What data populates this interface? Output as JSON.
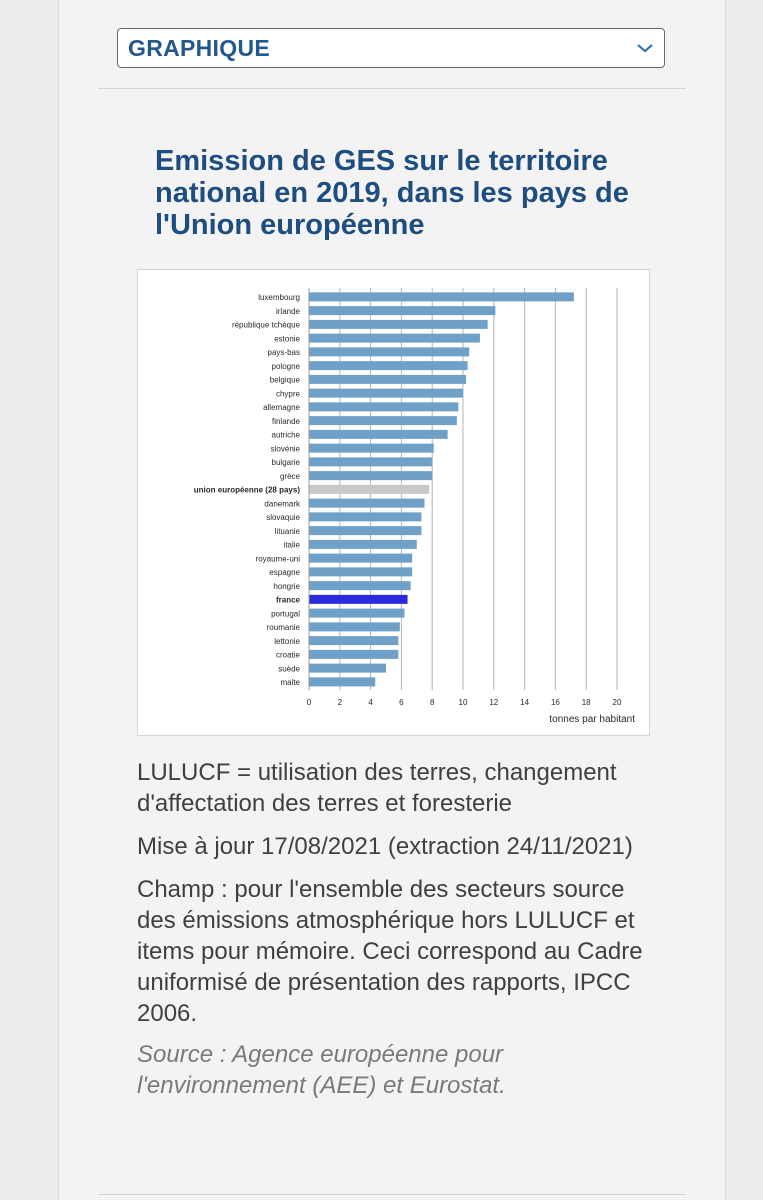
{
  "dropdown": {
    "label": "GRAPHIQUE",
    "icon": "chevron-down-icon"
  },
  "title": "Emission de GES sur le territoire national en 2019, dans les pays de l'Union européenne",
  "chart_data": {
    "type": "bar",
    "orientation": "horizontal",
    "categories": [
      "luxembourg",
      "irlande",
      "république tchèque",
      "estonie",
      "pays-bas",
      "pologne",
      "belgique",
      "chypre",
      "allemagne",
      "finlande",
      "autriche",
      "slovénie",
      "bulgarie",
      "grèce",
      "union européenne (28 pays)",
      "danemark",
      "slovaquie",
      "lituanie",
      "italie",
      "royaume-uni",
      "espagne",
      "hongrie",
      "france",
      "portugal",
      "roumanie",
      "lettonie",
      "croatie",
      "suède",
      "malte"
    ],
    "values": [
      17.2,
      12.1,
      11.6,
      11.1,
      10.4,
      10.3,
      10.2,
      10.0,
      9.7,
      9.6,
      9.0,
      8.1,
      8.0,
      8.0,
      7.8,
      7.5,
      7.3,
      7.3,
      7.0,
      6.7,
      6.7,
      6.6,
      6.4,
      6.2,
      5.9,
      5.8,
      5.8,
      5.0,
      4.3
    ],
    "highlight": {
      "union européenne (28 pays)": "#c8c8c8",
      "france": "#2b2bdc"
    },
    "bold_categories": [
      "union européenne (28 pays)",
      "france"
    ],
    "bar_color": "#6fa0c8",
    "xticks": [
      0,
      2,
      4,
      6,
      8,
      10,
      12,
      14,
      16,
      18,
      20
    ],
    "xlim": [
      0,
      20
    ],
    "xlabel": "tonnes par habitant",
    "grid": true
  },
  "notes": {
    "lulucf": "LULUCF = utilisation des terres, changement d'affectation des terres et foresterie",
    "update": "Mise à jour 17/08/2021 (extraction 24/11/2021)",
    "scope": "Champ : pour l'ensemble des secteurs source des émissions atmosphérique hors LULUCF et items pour mémoire. Ceci correspond au Cadre uniformisé de présentation des rapports, IPCC 2006.",
    "source": "Source : Agence européenne pour l'environnement (AEE) et Eurostat."
  }
}
